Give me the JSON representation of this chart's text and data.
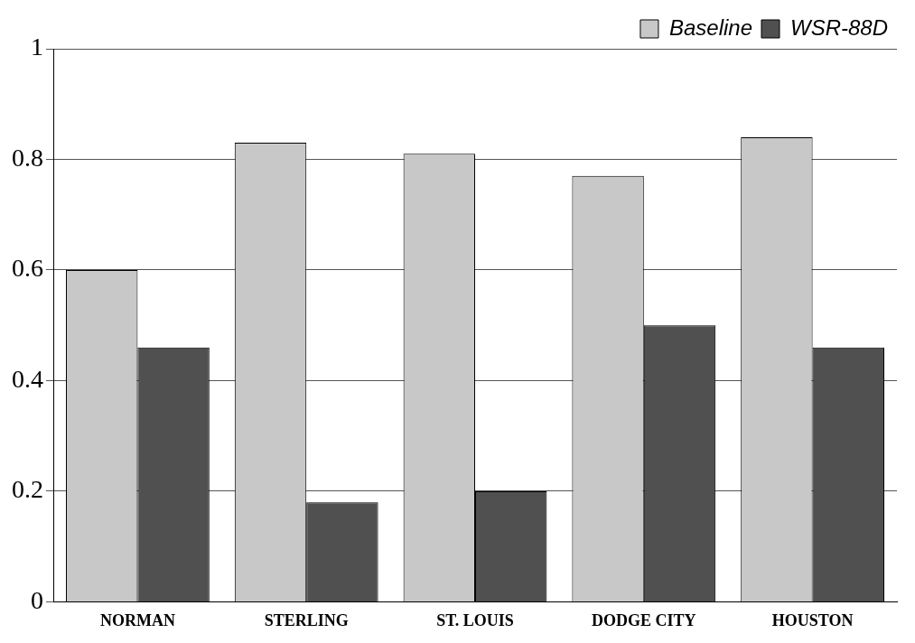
{
  "chart_data": {
    "type": "bar",
    "categories": [
      "NORMAN",
      "STERLING",
      "ST. LOUIS",
      "DODGE CITY",
      "HOUSTON"
    ],
    "series": [
      {
        "name": "Baseline",
        "color": "#c8c8c8",
        "values": [
          0.6,
          0.83,
          0.81,
          0.77,
          0.84
        ]
      },
      {
        "name": "WSR-88D",
        "color": "#505050",
        "values": [
          0.46,
          0.18,
          0.2,
          0.5,
          0.46
        ]
      }
    ],
    "ylim": [
      0,
      1
    ],
    "yticks": [
      0,
      0.2,
      0.4,
      0.6,
      0.8,
      1
    ],
    "grid": "y",
    "legend": "top right"
  }
}
